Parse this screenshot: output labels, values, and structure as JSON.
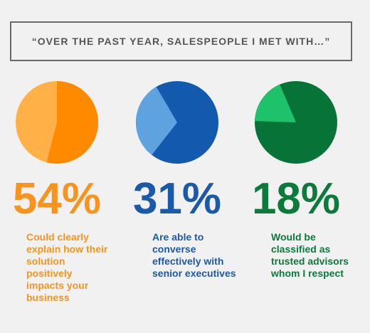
{
  "header": {
    "title": "“OVER THE PAST YEAR, SALESPEOPLE I MET WITH…”"
  },
  "chart_data": [
    {
      "type": "pie",
      "values": [
        54
      ],
      "value_labels": [
        "54%"
      ],
      "color": "#ff8a00",
      "rest_color": "#ffb147",
      "label_color": "#f7941d",
      "caption": "Could clearly explain how their solution positively impacts your business"
    },
    {
      "type": "pie",
      "values": [
        31
      ],
      "value_labels": [
        "31%"
      ],
      "color": "#5ea2e0",
      "rest_color": "#135aae",
      "label_color": "#1b59a9",
      "caption": "Are able to converse effectively with senior executives"
    },
    {
      "type": "pie",
      "values": [
        18
      ],
      "value_labels": [
        "18%"
      ],
      "color": "#1ec26a",
      "rest_color": "#067436",
      "label_color": "#0b7a3b",
      "caption": "Would be classified as trusted advisors whom I respect"
    }
  ]
}
